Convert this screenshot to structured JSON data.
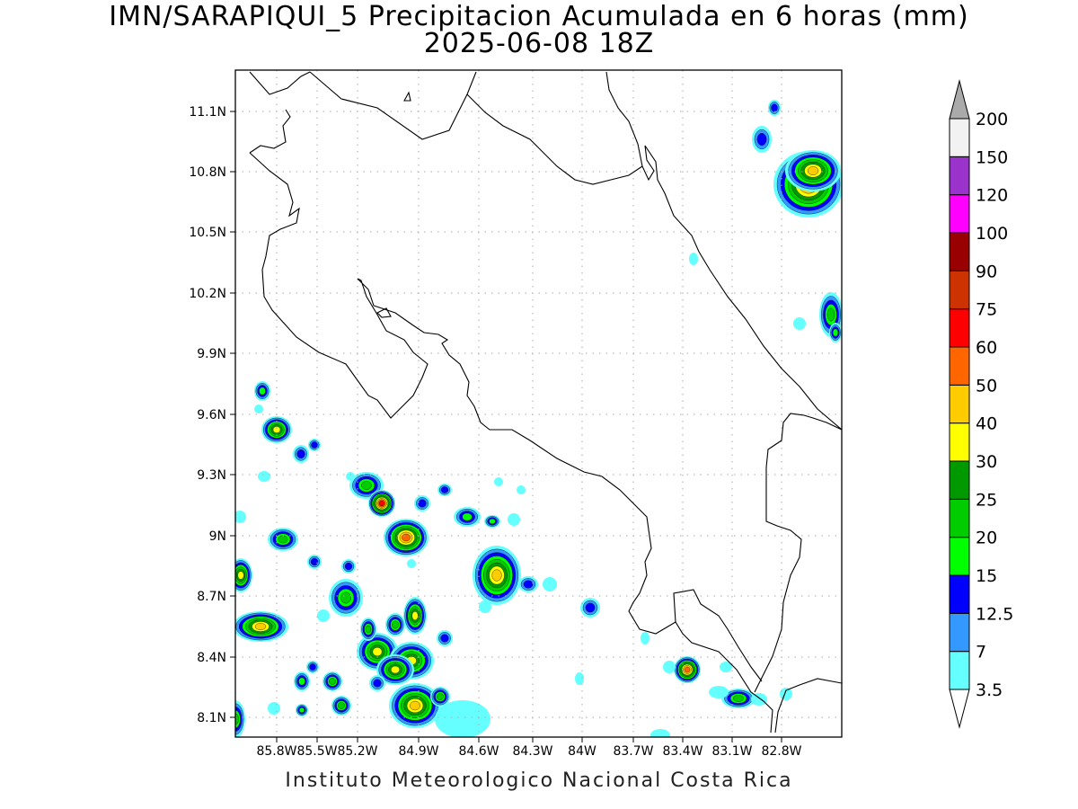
{
  "title": {
    "line1": "IMN/SARAPIQUI_5 Precipitacion Acumulada en 6 horas (mm)",
    "line2": "2025-06-08 18Z"
  },
  "credit": "Instituto Meteorologico Nacional Costa Rica",
  "axes": {
    "x_ticks": [
      "85.8W",
      "85.5W",
      "85.2W",
      "84.9W",
      "84.6W",
      "84.3W",
      "84W",
      "83.7W",
      "83.4W",
      "83.1W",
      "82.8W"
    ],
    "y_ticks": [
      "11.1N",
      "10.8N",
      "10.5N",
      "10.2N",
      "9.9N",
      "9.6N",
      "9.3N",
      "9N",
      "8.7N",
      "8.4N",
      "8.1N"
    ]
  },
  "legend": {
    "unit": "mm",
    "levels": [
      "3.5",
      "7",
      "12.5",
      "15",
      "20",
      "25",
      "30",
      "40",
      "50",
      "60",
      "75",
      "90",
      "100",
      "120",
      "150",
      "200"
    ],
    "colors": [
      "#66ffff",
      "#3399ff",
      "#0000ff",
      "#00ff00",
      "#00cc00",
      "#009900",
      "#ffff00",
      "#ffcc00",
      "#ff6600",
      "#ff0000",
      "#cc3300",
      "#990000",
      "#ff00ff",
      "#9933cc",
      "#f2f2f2",
      "#aaaaaa"
    ]
  },
  "colors": {
    "coast": "#000000",
    "grid": "#aaaaaa"
  }
}
